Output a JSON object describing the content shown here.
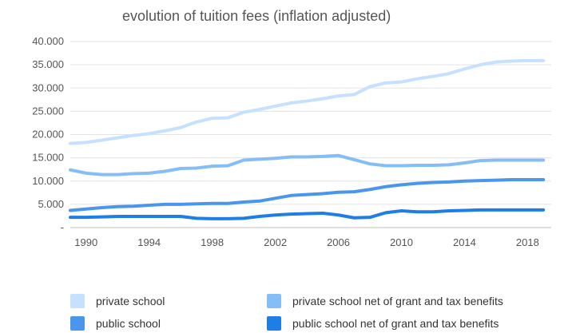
{
  "chart_data": {
    "type": "line",
    "title": "evolution of tuition fees (inflation adjusted)",
    "xlabel": "",
    "ylabel": "",
    "ylim": [
      0,
      40000
    ],
    "xlim": [
      1989,
      2019.5
    ],
    "y_ticks": [
      "-",
      "5.000",
      "10.000",
      "15.000",
      "20.000",
      "25.000",
      "30.000",
      "35.000",
      "40.000"
    ],
    "x_ticks": [
      "1990",
      "1994",
      "1998",
      "2002",
      "2006",
      "2010",
      "2014",
      "2018"
    ],
    "grid": "horizontal",
    "legend_position": "bottom",
    "x": [
      1989,
      1990,
      1991,
      1992,
      1993,
      1994,
      1995,
      1996,
      1997,
      1998,
      1999,
      2000,
      2001,
      2002,
      2003,
      2004,
      2005,
      2006,
      2007,
      2008,
      2009,
      2010,
      2011,
      2012,
      2013,
      2014,
      2015,
      2016,
      2017,
      2018,
      2019
    ],
    "series": [
      {
        "name": "private school",
        "color": "#c6e0ff",
        "values": [
          18100,
          18300,
          18800,
          19300,
          19800,
          20200,
          20800,
          21500,
          22700,
          23500,
          23600,
          24800,
          25400,
          26100,
          26800,
          27200,
          27700,
          28300,
          28600,
          30300,
          31100,
          31300,
          32000,
          32500,
          33100,
          34100,
          35000,
          35600,
          35800,
          35900,
          35900
        ]
      },
      {
        "name": "private school net of grant and tax benefits",
        "color": "#85bdf7",
        "values": [
          12400,
          11700,
          11400,
          11400,
          11600,
          11700,
          12100,
          12700,
          12800,
          13200,
          13300,
          14500,
          14700,
          14900,
          15200,
          15200,
          15300,
          15500,
          14600,
          13700,
          13300,
          13300,
          13400,
          13400,
          13500,
          13900,
          14400,
          14500,
          14500,
          14500,
          14500
        ]
      },
      {
        "name": "public school",
        "color": "#4a96ec",
        "values": [
          3700,
          4000,
          4300,
          4500,
          4600,
          4800,
          5000,
          5000,
          5100,
          5200,
          5200,
          5500,
          5700,
          6300,
          6900,
          7100,
          7300,
          7600,
          7700,
          8200,
          8800,
          9200,
          9500,
          9700,
          9800,
          10000,
          10100,
          10200,
          10300,
          10300,
          10300
        ]
      },
      {
        "name": "public school net of grant and tax benefits",
        "color": "#1f7ee6",
        "values": [
          2200,
          2200,
          2300,
          2400,
          2400,
          2400,
          2400,
          2400,
          2000,
          1900,
          1900,
          2000,
          2400,
          2700,
          2900,
          3000,
          3100,
          2700,
          2100,
          2200,
          3200,
          3600,
          3400,
          3400,
          3600,
          3700,
          3800,
          3800,
          3800,
          3800,
          3800
        ]
      }
    ]
  }
}
